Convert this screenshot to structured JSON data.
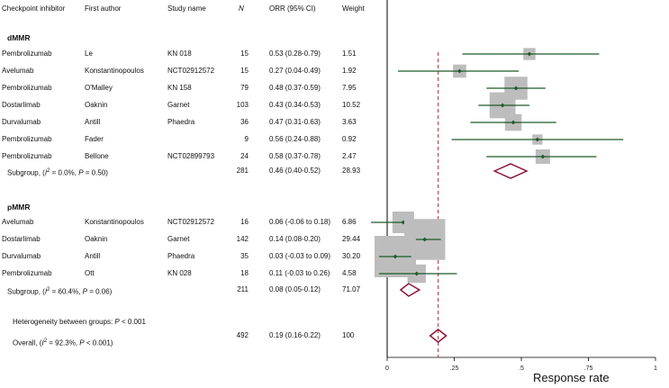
{
  "header": {
    "drug": "Checkpoint inhibitor",
    "author": "First author",
    "study": "Study name",
    "n": "N",
    "orr": "ORR (95% CI)",
    "weight": "Weight"
  },
  "groups": {
    "dmmr": "dMMR",
    "pmmr": "pMMR"
  },
  "dmmr_rows": [
    {
      "drug": "Pembrolizumab",
      "author": "Le",
      "study": "KN 018",
      "n": "15",
      "orr": "0.53 (0.28-0.79)",
      "weight": "1.51"
    },
    {
      "drug": "Avelumab",
      "author": "Konstantinopoulos",
      "study": "NCT02912572",
      "n": "15",
      "orr": "0.27 (0.04-0.49)",
      "weight": "1.92"
    },
    {
      "drug": "Pembrolizumab",
      "author": "O'Malley",
      "study": "KN 158",
      "n": "79",
      "orr": "0.48 (0.37-0.59)",
      "weight": "7.95"
    },
    {
      "drug": "Dostarlimab",
      "author": "Oaknin",
      "study": "Garnet",
      "n": "103",
      "orr": "0.43 (0.34-0.53)",
      "weight": "10.52"
    },
    {
      "drug": "Durvalumab",
      "author": "Antill",
      "study": "Phaedra",
      "n": "36",
      "orr": "0.47 (0.31-0.63)",
      "weight": "3.63"
    },
    {
      "drug": "Pembrolizumab",
      "author": "Fader",
      "study": "",
      "n": "9",
      "orr": "0.56 (0.24-0.88)",
      "weight": "0.92"
    },
    {
      "drug": "Pembrolizumab",
      "author": "Bellone",
      "study": "NCT02899793",
      "n": "24",
      "orr": "0.58 (0.37-0.78)",
      "weight": "2.47"
    }
  ],
  "dmmr_subgroup": {
    "label_pre": "Subgroup, (",
    "label_i": "I",
    "label_sup": "2",
    "label_mid": " = 0.0%, ",
    "label_p": "P",
    "label_post": " = 0.50)",
    "n": "281",
    "orr": "0.46 (0.40-0.52)",
    "weight": "28.93"
  },
  "pmmr_rows": [
    {
      "drug": "Avelumab",
      "author": "Konstantinopoulos",
      "study": "NCT02912572",
      "n": "16",
      "orr": "0.06 (-0.06 to 0.18)",
      "weight": "6.86"
    },
    {
      "drug": "Dostarlimab",
      "author": "Oaknin",
      "study": "Garnet",
      "n": "142",
      "orr": "0.14 (0.08-0.20)",
      "weight": "29.44"
    },
    {
      "drug": "Durvalumab",
      "author": "Antill",
      "study": "Phaedra",
      "n": "35",
      "orr": "0.03 (-0.03 to 0.09)",
      "weight": "30.20"
    },
    {
      "drug": "Pembrolizumab",
      "author": "Ott",
      "study": "KN 028",
      "n": "18",
      "orr": "0.11 (-0.03 to 0.26)",
      "weight": "4.58"
    }
  ],
  "pmmr_subgroup": {
    "label_pre": "Subgroup, (",
    "label_i": "I",
    "label_sup": "2",
    "label_mid": " = 60.4%, ",
    "label_p": "P",
    "label_post": " = 0.06)",
    "n": "211",
    "orr": "0.08 (0.05-0.12)",
    "weight": "71.07"
  },
  "heterogeneity": {
    "pre": "Heterogeneity between groups: ",
    "p": "P",
    "post": " < 0.001"
  },
  "overall": {
    "label_pre": "Overall, (",
    "label_i": "I",
    "label_sup": "2",
    "label_mid": " = 92.3%, ",
    "label_p": "P",
    "label_post": " < 0.001)",
    "n": "492",
    "orr": "0.19 (0.16-0.22)",
    "weight": "100"
  },
  "colors": {
    "ci_line": "#1e5a2a",
    "box": "#bdbdbd",
    "diamond": "#8b1538",
    "ref_line": "#b03030",
    "axis": "#000000"
  },
  "chart_data": {
    "type": "forest",
    "xlabel": "Response rate",
    "xlim": [
      0,
      1
    ],
    "x_ticks": [
      0,
      0.25,
      0.5,
      0.75,
      1
    ],
    "x_tick_labels": [
      "0",
      ".25",
      ".5",
      ".75",
      "1"
    ],
    "overall_ref": 0.19,
    "dmmr": [
      {
        "est": 0.53,
        "lo": 0.28,
        "hi": 0.79,
        "weight": 1.51
      },
      {
        "est": 0.27,
        "lo": 0.04,
        "hi": 0.49,
        "weight": 1.92
      },
      {
        "est": 0.48,
        "lo": 0.37,
        "hi": 0.59,
        "weight": 7.95
      },
      {
        "est": 0.43,
        "lo": 0.34,
        "hi": 0.53,
        "weight": 10.52
      },
      {
        "est": 0.47,
        "lo": 0.31,
        "hi": 0.63,
        "weight": 3.63
      },
      {
        "est": 0.56,
        "lo": 0.24,
        "hi": 0.88,
        "weight": 0.92
      },
      {
        "est": 0.58,
        "lo": 0.37,
        "hi": 0.78,
        "weight": 2.47
      }
    ],
    "dmmr_summary": {
      "est": 0.46,
      "lo": 0.4,
      "hi": 0.52
    },
    "pmmr": [
      {
        "est": 0.06,
        "lo": -0.06,
        "hi": 0.18,
        "weight": 6.86
      },
      {
        "est": 0.14,
        "lo": 0.08,
        "hi": 0.2,
        "weight": 29.44
      },
      {
        "est": 0.03,
        "lo": -0.03,
        "hi": 0.09,
        "weight": 30.2
      },
      {
        "est": 0.11,
        "lo": -0.03,
        "hi": 0.26,
        "weight": 4.58
      }
    ],
    "pmmr_summary": {
      "est": 0.08,
      "lo": 0.05,
      "hi": 0.12
    },
    "overall_summary": {
      "est": 0.19,
      "lo": 0.16,
      "hi": 0.22
    }
  }
}
